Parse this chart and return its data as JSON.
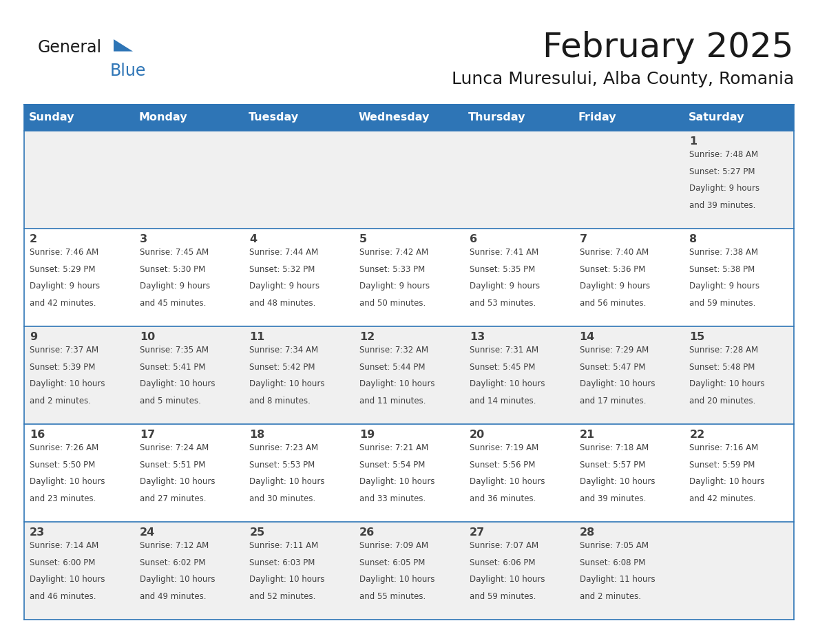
{
  "title": "February 2025",
  "subtitle": "Lunca Muresului, Alba County, Romania",
  "header_bg": "#2E75B6",
  "header_text": "#FFFFFF",
  "cell_bg_even": "#F0F0F0",
  "cell_bg_odd": "#FFFFFF",
  "border_color": "#2E75B6",
  "text_color": "#404040",
  "days_of_week": [
    "Sunday",
    "Monday",
    "Tuesday",
    "Wednesday",
    "Thursday",
    "Friday",
    "Saturday"
  ],
  "weeks": [
    [
      null,
      null,
      null,
      null,
      null,
      null,
      1
    ],
    [
      2,
      3,
      4,
      5,
      6,
      7,
      8
    ],
    [
      9,
      10,
      11,
      12,
      13,
      14,
      15
    ],
    [
      16,
      17,
      18,
      19,
      20,
      21,
      22
    ],
    [
      23,
      24,
      25,
      26,
      27,
      28,
      null
    ]
  ],
  "day_data": {
    "1": {
      "sunrise": "7:48 AM",
      "sunset": "5:27 PM",
      "daylight_hours": 9,
      "daylight_minutes": 39
    },
    "2": {
      "sunrise": "7:46 AM",
      "sunset": "5:29 PM",
      "daylight_hours": 9,
      "daylight_minutes": 42
    },
    "3": {
      "sunrise": "7:45 AM",
      "sunset": "5:30 PM",
      "daylight_hours": 9,
      "daylight_minutes": 45
    },
    "4": {
      "sunrise": "7:44 AM",
      "sunset": "5:32 PM",
      "daylight_hours": 9,
      "daylight_minutes": 48
    },
    "5": {
      "sunrise": "7:42 AM",
      "sunset": "5:33 PM",
      "daylight_hours": 9,
      "daylight_minutes": 50
    },
    "6": {
      "sunrise": "7:41 AM",
      "sunset": "5:35 PM",
      "daylight_hours": 9,
      "daylight_minutes": 53
    },
    "7": {
      "sunrise": "7:40 AM",
      "sunset": "5:36 PM",
      "daylight_hours": 9,
      "daylight_minutes": 56
    },
    "8": {
      "sunrise": "7:38 AM",
      "sunset": "5:38 PM",
      "daylight_hours": 9,
      "daylight_minutes": 59
    },
    "9": {
      "sunrise": "7:37 AM",
      "sunset": "5:39 PM",
      "daylight_hours": 10,
      "daylight_minutes": 2
    },
    "10": {
      "sunrise": "7:35 AM",
      "sunset": "5:41 PM",
      "daylight_hours": 10,
      "daylight_minutes": 5
    },
    "11": {
      "sunrise": "7:34 AM",
      "sunset": "5:42 PM",
      "daylight_hours": 10,
      "daylight_minutes": 8
    },
    "12": {
      "sunrise": "7:32 AM",
      "sunset": "5:44 PM",
      "daylight_hours": 10,
      "daylight_minutes": 11
    },
    "13": {
      "sunrise": "7:31 AM",
      "sunset": "5:45 PM",
      "daylight_hours": 10,
      "daylight_minutes": 14
    },
    "14": {
      "sunrise": "7:29 AM",
      "sunset": "5:47 PM",
      "daylight_hours": 10,
      "daylight_minutes": 17
    },
    "15": {
      "sunrise": "7:28 AM",
      "sunset": "5:48 PM",
      "daylight_hours": 10,
      "daylight_minutes": 20
    },
    "16": {
      "sunrise": "7:26 AM",
      "sunset": "5:50 PM",
      "daylight_hours": 10,
      "daylight_minutes": 23
    },
    "17": {
      "sunrise": "7:24 AM",
      "sunset": "5:51 PM",
      "daylight_hours": 10,
      "daylight_minutes": 27
    },
    "18": {
      "sunrise": "7:23 AM",
      "sunset": "5:53 PM",
      "daylight_hours": 10,
      "daylight_minutes": 30
    },
    "19": {
      "sunrise": "7:21 AM",
      "sunset": "5:54 PM",
      "daylight_hours": 10,
      "daylight_minutes": 33
    },
    "20": {
      "sunrise": "7:19 AM",
      "sunset": "5:56 PM",
      "daylight_hours": 10,
      "daylight_minutes": 36
    },
    "21": {
      "sunrise": "7:18 AM",
      "sunset": "5:57 PM",
      "daylight_hours": 10,
      "daylight_minutes": 39
    },
    "22": {
      "sunrise": "7:16 AM",
      "sunset": "5:59 PM",
      "daylight_hours": 10,
      "daylight_minutes": 42
    },
    "23": {
      "sunrise": "7:14 AM",
      "sunset": "6:00 PM",
      "daylight_hours": 10,
      "daylight_minutes": 46
    },
    "24": {
      "sunrise": "7:12 AM",
      "sunset": "6:02 PM",
      "daylight_hours": 10,
      "daylight_minutes": 49
    },
    "25": {
      "sunrise": "7:11 AM",
      "sunset": "6:03 PM",
      "daylight_hours": 10,
      "daylight_minutes": 52
    },
    "26": {
      "sunrise": "7:09 AM",
      "sunset": "6:05 PM",
      "daylight_hours": 10,
      "daylight_minutes": 55
    },
    "27": {
      "sunrise": "7:07 AM",
      "sunset": "6:06 PM",
      "daylight_hours": 10,
      "daylight_minutes": 59
    },
    "28": {
      "sunrise": "7:05 AM",
      "sunset": "6:08 PM",
      "daylight_hours": 11,
      "daylight_minutes": 2
    }
  },
  "logo_text_general": "General",
  "logo_text_blue": "Blue",
  "logo_triangle_color": "#2E75B6",
  "logo_general_color": "#1a1a1a"
}
